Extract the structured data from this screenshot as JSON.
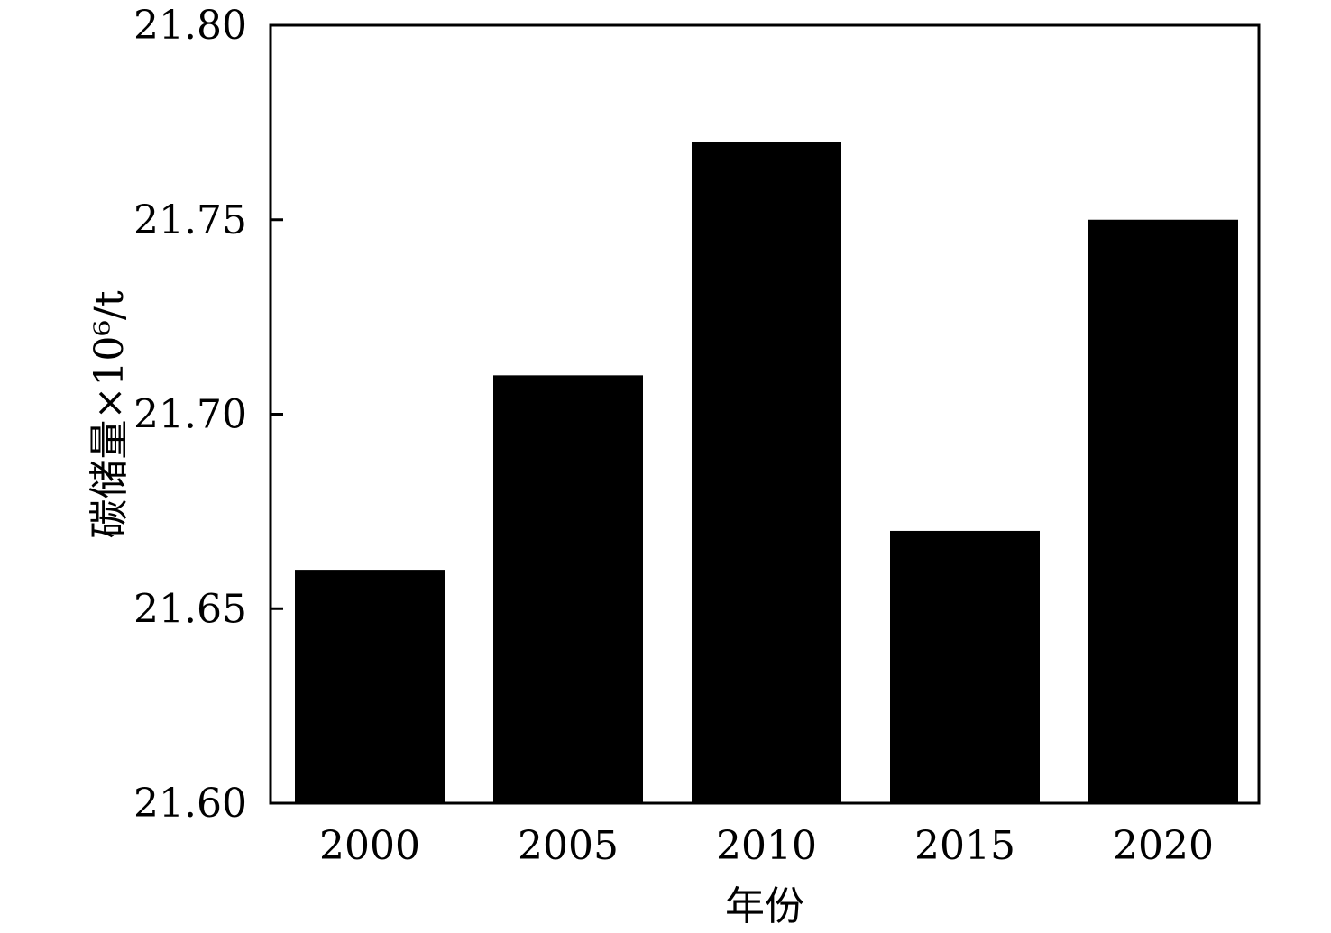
{
  "chart_data": {
    "type": "bar",
    "categories": [
      "2000",
      "2005",
      "2010",
      "2015",
      "2020"
    ],
    "values": [
      21.66,
      21.71,
      21.77,
      21.67,
      21.75
    ],
    "title": "",
    "xlabel": "年份",
    "ylabel": "碳储量×10⁶/t",
    "ylim": [
      21.6,
      21.8
    ],
    "yticks": [
      "21.60",
      "21.65",
      "21.70",
      "21.75",
      "21.80"
    ],
    "bar_color": "#000000",
    "grid": false,
    "legend": "none"
  }
}
